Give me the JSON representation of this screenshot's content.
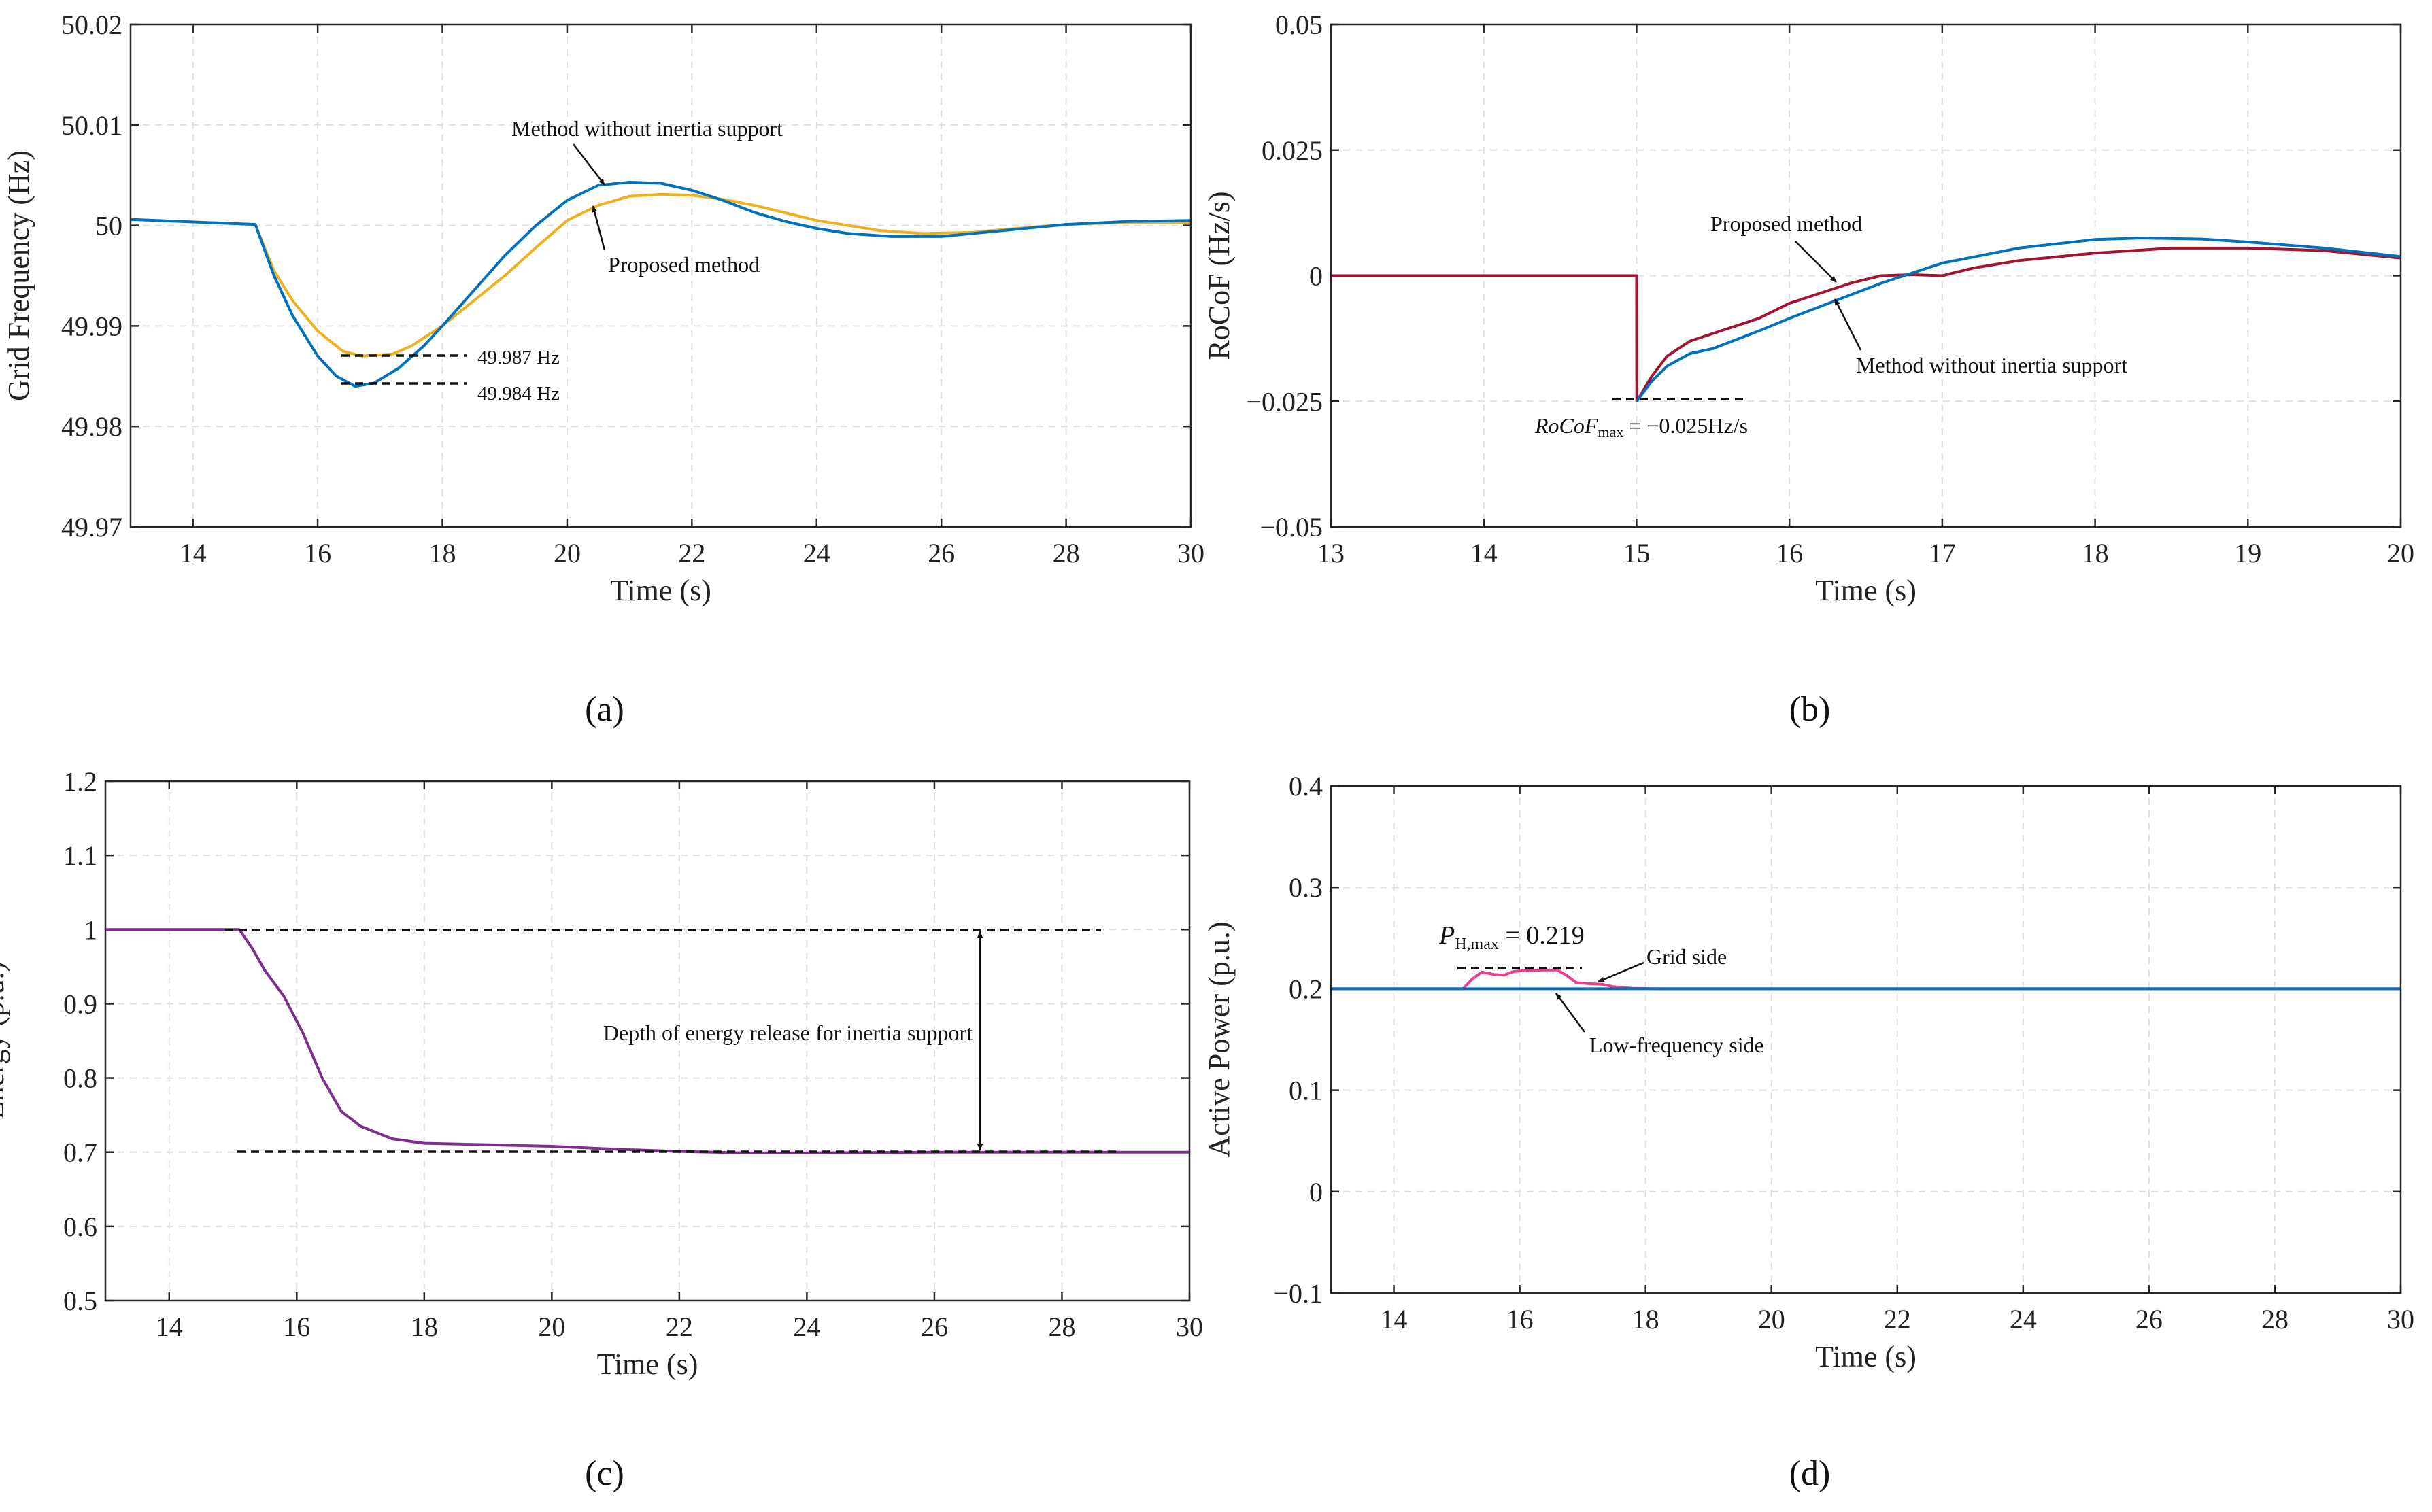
{
  "chart_data": [
    {
      "type": "line",
      "panel": "(a)",
      "xlabel": "Time (s)",
      "ylabel": "Grid Frequency (Hz)",
      "xlim": [
        13,
        30
      ],
      "ylim": [
        49.97,
        50.02
      ],
      "xticks": [
        "14",
        "16",
        "18",
        "20",
        "22",
        "24",
        "26",
        "28",
        "30"
      ],
      "yticks": [
        "49.97",
        "49.98",
        "49.99",
        "50",
        "50.01",
        "50.02"
      ],
      "grid": true,
      "series": [
        {
          "name": "Proposed method",
          "color": "#EDB120",
          "x": [
            13,
            15,
            15.3,
            15.6,
            16,
            16.4,
            16.7,
            17.2,
            17.5,
            18,
            18.5,
            19,
            19.5,
            20,
            20.5,
            21,
            21.5,
            22,
            22.5,
            23,
            24,
            25,
            25.7,
            26.5,
            27,
            28,
            29,
            30
          ],
          "y": [
            50.0006,
            50.0001,
            49.9955,
            49.9925,
            49.9895,
            49.9875,
            49.987,
            49.9872,
            49.988,
            49.99,
            49.9925,
            49.995,
            49.9978,
            50.0005,
            50.002,
            50.0029,
            50.0031,
            50.003,
            50.0026,
            50.002,
            50.0005,
            49.9995,
            49.9992,
            49.9993,
            49.9996,
            50.0001,
            50.0003,
            50.0003
          ]
        },
        {
          "name": "Method without inertia support",
          "color": "#0072BD",
          "x": [
            13,
            15,
            15.3,
            15.6,
            16,
            16.3,
            16.6,
            16.9,
            17.3,
            17.7,
            18,
            18.5,
            19,
            19.5,
            20,
            20.5,
            21,
            21.5,
            22,
            22.5,
            23,
            23.5,
            24,
            24.5,
            25.2,
            26,
            27,
            28,
            29,
            30
          ],
          "y": [
            50.0006,
            50.0001,
            49.995,
            49.991,
            49.987,
            49.985,
            49.984,
            49.9843,
            49.9858,
            49.988,
            49.99,
            49.9935,
            49.997,
            50.0,
            50.0025,
            50.004,
            50.0043,
            50.0042,
            50.0035,
            50.0025,
            50.0013,
            50.0004,
            49.9997,
            49.9992,
            49.9989,
            49.9989,
            49.9995,
            50.0001,
            50.0004,
            50.0005
          ]
        }
      ],
      "annotations": {
        "without": "Method without inertia support",
        "proposed": "Proposed method",
        "min_proposed": "49.987 Hz",
        "min_without": "49.984 Hz"
      },
      "caption": "(a)"
    },
    {
      "type": "line",
      "panel": "(b)",
      "xlabel": "Time (s)",
      "ylabel": "RoCoF (Hz/s)",
      "xlim": [
        13,
        20
      ],
      "ylim": [
        -0.05,
        0.05
      ],
      "xticks": [
        "13",
        "14",
        "15",
        "16",
        "17",
        "18",
        "19",
        "20"
      ],
      "yticks": [
        "−0.05",
        "−0.025",
        "0",
        "0.025",
        "0.05"
      ],
      "grid": true,
      "series": [
        {
          "name": "Proposed method",
          "color": "#A2142F",
          "x": [
            13,
            15,
            15.001,
            15.1,
            15.2,
            15.35,
            15.5,
            15.8,
            16,
            16.2,
            16.4,
            16.6,
            16.8,
            17,
            17.2,
            17.5,
            18,
            18.5,
            19,
            19.5,
            20
          ],
          "y": [
            0,
            0,
            -0.025,
            -0.02,
            -0.016,
            -0.013,
            -0.0115,
            -0.0085,
            -0.0055,
            -0.0035,
            -0.0015,
            0,
            0.0002,
            0,
            0.0015,
            0.003,
            0.0045,
            0.0055,
            0.0055,
            0.005,
            0.0035
          ]
        },
        {
          "name": "Method without inertia support",
          "color": "#0072BD",
          "x": [
            15,
            15.1,
            15.2,
            15.35,
            15.5,
            15.8,
            16,
            16.3,
            16.6,
            17,
            17.5,
            18,
            18.3,
            18.7,
            19,
            19.5,
            20
          ],
          "y": [
            -0.025,
            -0.021,
            -0.018,
            -0.0155,
            -0.0145,
            -0.011,
            -0.0085,
            -0.005,
            -0.0015,
            0.0025,
            0.0055,
            0.0072,
            0.0075,
            0.0073,
            0.0067,
            0.0055,
            0.0038
          ]
        }
      ],
      "annotations": {
        "proposed": "Proposed method",
        "without": "Method without inertia support",
        "rocof_label": "RoCoF",
        "rocof_sub": "max",
        "rocof_value": " = −0.025Hz/s"
      },
      "caption": "(b)"
    },
    {
      "type": "line",
      "panel": "(c)",
      "xlabel": "Time (s)",
      "ylabel": "Energy (p.u.)",
      "xlim": [
        13,
        30
      ],
      "ylim": [
        0.5,
        1.2
      ],
      "xticks": [
        "14",
        "16",
        "18",
        "20",
        "22",
        "24",
        "26",
        "28",
        "30"
      ],
      "yticks": [
        "0.5",
        "0.6",
        "0.7",
        "0.8",
        "0.9",
        "1",
        "1.1",
        "1.2"
      ],
      "grid": true,
      "series": [
        {
          "color": "#7E2F8E",
          "x": [
            13,
            15.1,
            15.3,
            15.5,
            15.8,
            16.1,
            16.4,
            16.7,
            17,
            17.5,
            18,
            19,
            20,
            21,
            22,
            23,
            24,
            25,
            26,
            28,
            30
          ],
          "y": [
            1,
            1,
            0.975,
            0.945,
            0.91,
            0.86,
            0.8,
            0.755,
            0.735,
            0.718,
            0.712,
            0.71,
            0.708,
            0.704,
            0.701,
            0.699,
            0.699,
            0.6995,
            0.7,
            0.7,
            0.7
          ]
        }
      ],
      "annotations": {
        "depth": "Depth of energy release for inertia support"
      },
      "caption": "(c)"
    },
    {
      "type": "line",
      "panel": "(d)",
      "xlabel": "Time (s)",
      "ylabel": "Active Power (p.u.)",
      "xlim": [
        13,
        30
      ],
      "ylim": [
        -0.1,
        0.4
      ],
      "xticks": [
        "14",
        "16",
        "18",
        "20",
        "22",
        "24",
        "26",
        "28",
        "30"
      ],
      "yticks": [
        "−0.1",
        "0",
        "0.1",
        "0.2",
        "0.3",
        "0.4"
      ],
      "grid": true,
      "series": [
        {
          "name": "Grid side",
          "color": "#E83E8C",
          "x": [
            13,
            15.1,
            15.25,
            15.4,
            15.6,
            15.75,
            15.9,
            16.1,
            16.4,
            16.6,
            16.75,
            16.9,
            17.1,
            17.3,
            17.5,
            17.8,
            18.2,
            30
          ],
          "y": [
            0.2,
            0.2,
            0.21,
            0.2165,
            0.214,
            0.2135,
            0.217,
            0.218,
            0.2185,
            0.2185,
            0.213,
            0.206,
            0.205,
            0.2045,
            0.202,
            0.2005,
            0.2,
            0.2
          ]
        },
        {
          "name": "Low-frequency side",
          "color": "#0072BD",
          "x": [
            13,
            30
          ],
          "y": [
            0.2,
            0.2
          ]
        }
      ],
      "annotations": {
        "pmax_label": "P",
        "pmax_sub": "H,max",
        "pmax_value": " = 0.219",
        "grid_side": "Grid side",
        "low_side": "Low-frequency side"
      },
      "caption": "(d)"
    }
  ]
}
